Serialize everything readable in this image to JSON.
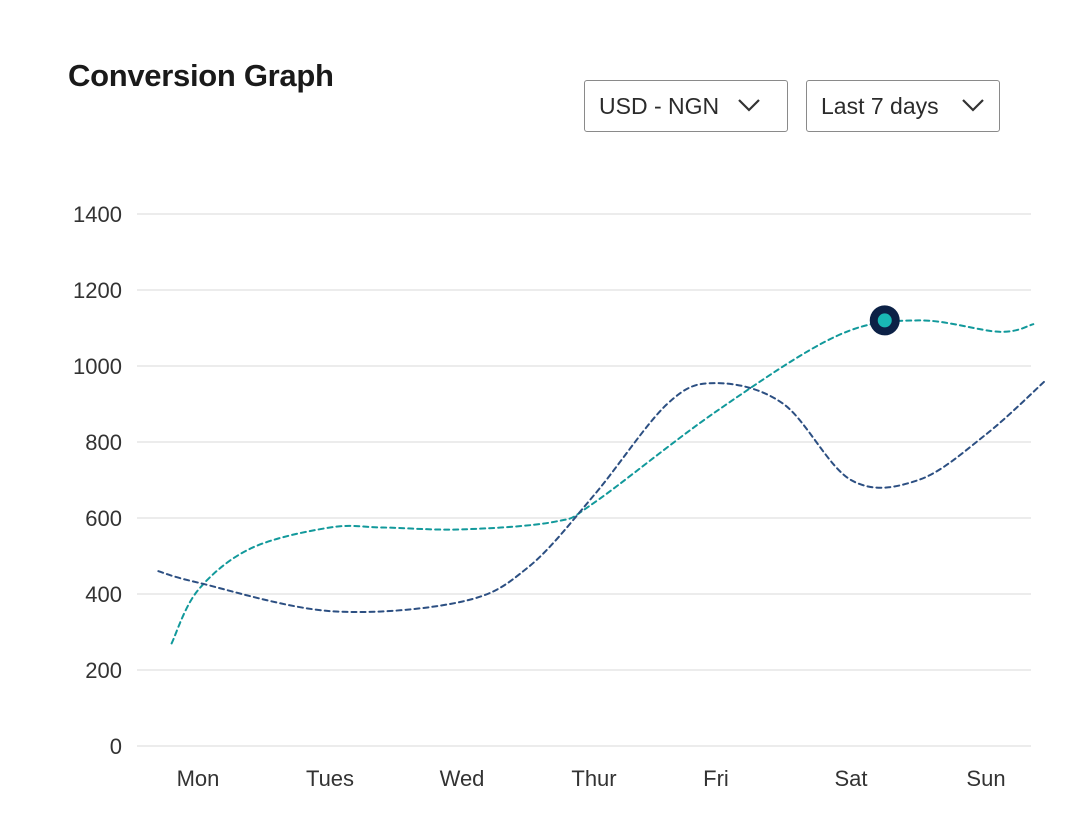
{
  "header": {
    "title": "Conversion Graph"
  },
  "controls": {
    "currency_pair": "USD - NGN",
    "date_range": "Last 7 days"
  },
  "icons": {
    "dropdown": "chevron-down-icon",
    "highlight": "highlighted-point-marker"
  },
  "colors": {
    "series_teal": "#12999b",
    "series_navy": "#2c4f82",
    "marker_outer": "#0c2146",
    "marker_inner": "#19b8b4",
    "grid": "#e6e6e6"
  },
  "chart_data": {
    "type": "line",
    "title": "Conversion Graph",
    "xlabel": "",
    "ylabel": "",
    "categories": [
      "Mon",
      "Tues",
      "Wed",
      "Thur",
      "Fri",
      "Sat",
      "Sun"
    ],
    "yticks": [
      0,
      200,
      400,
      600,
      800,
      1000,
      1200,
      1400
    ],
    "ylim": [
      0,
      1400
    ],
    "grid": true,
    "line_style": "dashed",
    "smooth": true,
    "series": [
      {
        "color": "#12999b",
        "x": [
          -0.2,
          0.0,
          0.4,
          1.0,
          1.4,
          2.0,
          2.7,
          3.0,
          4.0,
          4.9,
          5.5,
          6.1,
          6.35
        ],
        "values": [
          270,
          410,
          520,
          575,
          575,
          570,
          590,
          640,
          880,
          1080,
          1120,
          1090,
          1110
        ]
      },
      {
        "color": "#2c4f82",
        "x": [
          -0.3,
          0.0,
          1.0,
          2.0,
          2.5,
          3.0,
          3.6,
          4.0,
          4.5,
          5.0,
          5.5,
          6.0,
          6.45
        ],
        "values": [
          460,
          430,
          355,
          380,
          470,
          660,
          900,
          955,
          900,
          700,
          700,
          820,
          965
        ]
      }
    ],
    "highlight": {
      "x": 5.25,
      "value": 1120
    }
  }
}
